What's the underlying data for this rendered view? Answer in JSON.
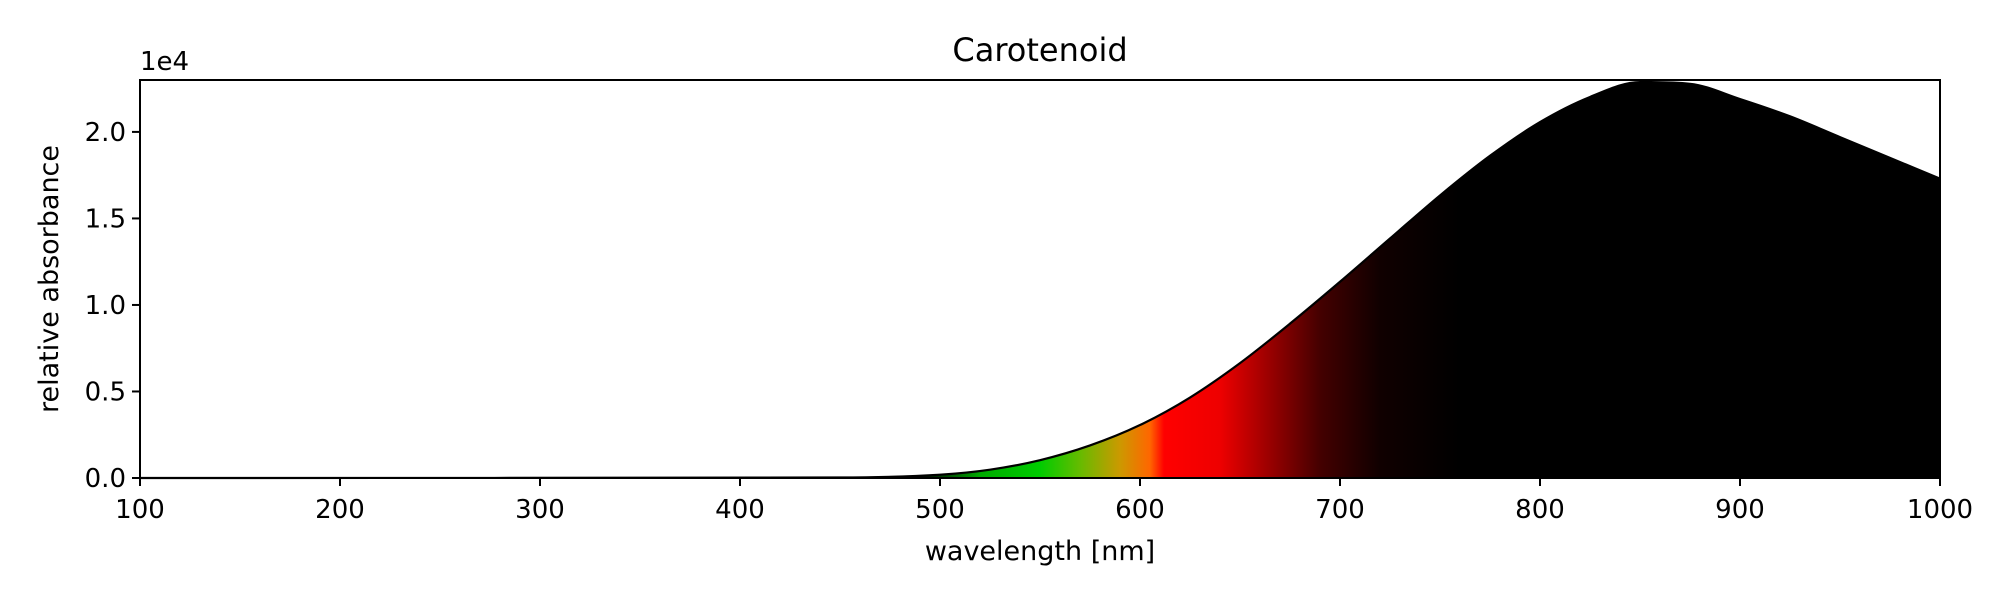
{
  "chart_data": {
    "type": "area",
    "title": "Carotenoid",
    "xlabel": "wavelength [nm]",
    "ylabel": "relative absorbance",
    "y_offset_label": "1e4",
    "xlim": [
      100,
      1000
    ],
    "ylim": [
      0,
      23000
    ],
    "x_ticks": [
      100,
      200,
      300,
      400,
      500,
      600,
      700,
      800,
      900,
      1000
    ],
    "x_tick_labels": [
      "100",
      "200",
      "300",
      "400",
      "500",
      "600",
      "700",
      "800",
      "900",
      "1000"
    ],
    "y_ticks": [
      0,
      5000,
      10000,
      15000,
      20000
    ],
    "y_tick_labels": [
      "0.0",
      "0.5",
      "1.0",
      "1.5",
      "2.0"
    ],
    "grid": false,
    "fill": "spectral color gradient under the curve (visible band colored, infrared black)",
    "series": [
      {
        "x": [
          100,
          450,
          500,
          525,
          550,
          575,
          600,
          625,
          650,
          675,
          700,
          725,
          750,
          775,
          800,
          825,
          850,
          875,
          900,
          925,
          950,
          975,
          1000
        ],
        "y": [
          0,
          30,
          190,
          480,
          1030,
          1880,
          3060,
          4650,
          6640,
          8920,
          11340,
          13840,
          16330,
          18620,
          20570,
          22020,
          22880,
          22780,
          21900,
          20900,
          19700,
          18500,
          17300
        ]
      }
    ]
  }
}
